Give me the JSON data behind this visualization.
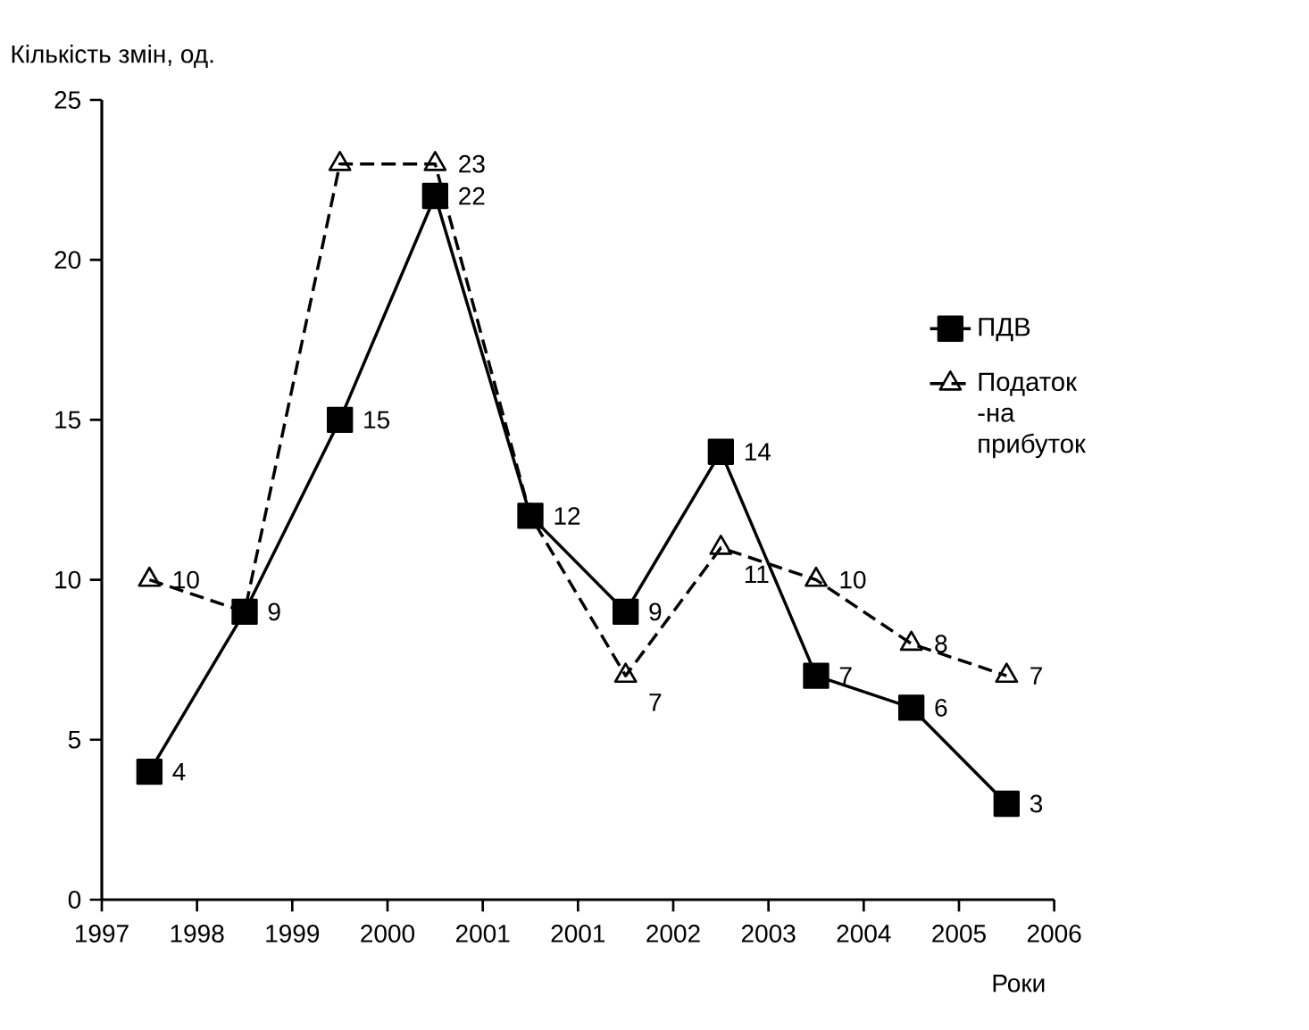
{
  "chart_data": {
    "type": "line",
    "xlabel": "Роки",
    "ylabel": "Кількість змін, од.",
    "categories": [
      null,
      null,
      null,
      null,
      null,
      null,
      null,
      null,
      null,
      null
    ],
    "annotations": [
      "1997",
      "1998",
      "1999",
      "2000",
      "2001",
      "2001",
      "2002",
      "2003",
      "2004",
      "2005",
      "2006"
    ],
    "ylim": [
      0,
      25
    ],
    "yticks": [
      0,
      5,
      10,
      15,
      20,
      25
    ],
    "series": [
      {
        "name": "ПДВ",
        "color": "#000000",
        "marker": "square",
        "line_style": "solid",
        "values": [
          4,
          9,
          15,
          22,
          12,
          9,
          14,
          7,
          6,
          3
        ],
        "value_labels": [
          "4",
          "9",
          "15",
          "22",
          null,
          "9",
          "14",
          "7",
          "6",
          "3"
        ]
      },
      {
        "name": "Податок -на прибуток",
        "color": "#000000",
        "marker": "triangle",
        "line_style": "dashed",
        "values": [
          10,
          9,
          23,
          23,
          12,
          7,
          11,
          10,
          8,
          7
        ],
        "value_labels": [
          "10",
          null,
          null,
          "23",
          "12",
          "7",
          "11",
          "10",
          "8",
          "7"
        ]
      }
    ],
    "legend": "right",
    "grid": false
  }
}
